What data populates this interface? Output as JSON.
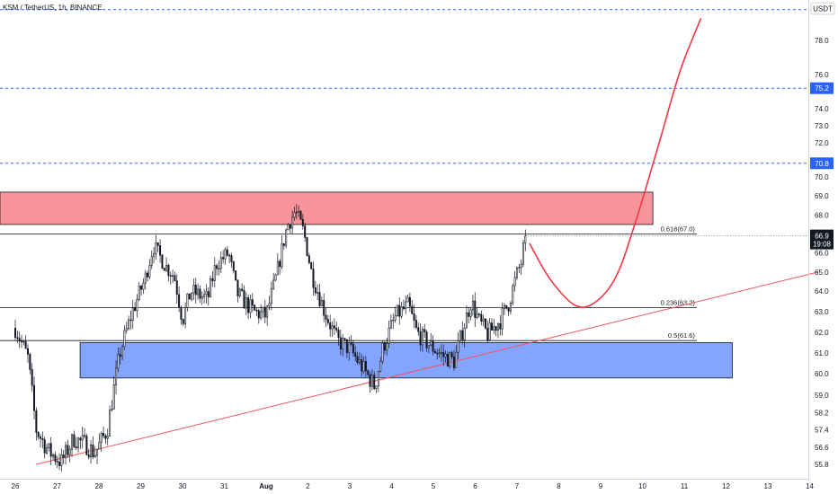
{
  "header": {
    "title": "KSM / TetherUS, 1h, BINANCE",
    "currency": "USDT"
  },
  "chart_data": {
    "type": "candlestick",
    "title": "KSM / TetherUS, 1h, BINANCE",
    "ylabel": "USDT",
    "ylim": [
      55.5,
      79.8
    ],
    "y_ticks": [
      55.8,
      56.6,
      57.4,
      58.2,
      59.0,
      60.0,
      61.0,
      62.0,
      63.0,
      64.0,
      65.0,
      66.0,
      68.0,
      69.0,
      70.0,
      72.0,
      73.0,
      74.0,
      76.0,
      78.0
    ],
    "x_ticks": [
      "26",
      "27",
      "28",
      "29",
      "30",
      "31",
      "Aug",
      "2",
      "3",
      "4",
      "5",
      "6",
      "7",
      "8",
      "9",
      "10",
      "11",
      "12",
      "13",
      "14"
    ],
    "xlim": [
      0,
      19.5
    ],
    "last_price": {
      "value": 66.9,
      "label": "66.9",
      "countdown": "19:08",
      "color": "#131722"
    },
    "horizontal_levels": [
      {
        "value": 79.8,
        "style": "dashed",
        "color": "#2962ff"
      },
      {
        "value": 75.2,
        "label": "75.2",
        "style": "dashed",
        "color": "#2962ff"
      },
      {
        "value": 70.8,
        "label": "70.8",
        "style": "dashed",
        "color": "#2962ff"
      }
    ],
    "fib_levels": [
      {
        "label": "0.618(67.0)",
        "value": 67.0,
        "x_start": 0,
        "x_end": 16.3
      },
      {
        "label": "0.236(63.2)",
        "value": 63.2,
        "x_start": 0,
        "x_end": 16.3
      },
      {
        "label": "0.5(61.6)",
        "value": 61.6,
        "x_start": 0,
        "x_end": 16.3
      }
    ],
    "zones": [
      {
        "name": "resistance",
        "x_start": 0,
        "x_end": 15.25,
        "y_low": 67.5,
        "y_high": 69.2,
        "color": "#f7525f"
      },
      {
        "name": "support",
        "x_start": 1.55,
        "x_end": 17.15,
        "y_low": 59.8,
        "y_high": 61.5,
        "color": "#2962ff"
      }
    ],
    "trendline": {
      "x": [
        0.5,
        19.2
      ],
      "y": [
        55.8,
        65.0
      ],
      "color": "#f7525f"
    },
    "projection": {
      "color": "#f23645",
      "x": [
        12.3,
        12.8,
        13.4,
        13.9,
        14.4,
        14.9,
        15.4,
        15.9,
        16.4
      ],
      "y": [
        66.5,
        64.6,
        63.3,
        63.5,
        64.9,
        68.1,
        72.0,
        76.2,
        79.3
      ]
    },
    "candles": {
      "x_start": 0,
      "x_end": 12.2,
      "count": 244,
      "anchors": [
        [
          0.0,
          62.2
        ],
        [
          0.3,
          60.8
        ],
        [
          0.5,
          57.4
        ],
        [
          0.8,
          56.4
        ],
        [
          1.1,
          55.9
        ],
        [
          1.4,
          57.0
        ],
        [
          1.7,
          56.7
        ],
        [
          1.9,
          56.3
        ],
        [
          2.2,
          57.4
        ],
        [
          2.5,
          61.0
        ],
        [
          2.8,
          63.0
        ],
        [
          3.1,
          64.6
        ],
        [
          3.3,
          66.4
        ],
        [
          3.6,
          65.3
        ],
        [
          3.8,
          64.8
        ],
        [
          4.0,
          62.6
        ],
        [
          4.2,
          64.0
        ],
        [
          4.6,
          63.6
        ],
        [
          4.8,
          65.4
        ],
        [
          5.1,
          66.0
        ],
        [
          5.3,
          63.9
        ],
        [
          5.7,
          63.0
        ],
        [
          6.0,
          62.8
        ],
        [
          6.2,
          64.4
        ],
        [
          6.5,
          67.4
        ],
        [
          6.7,
          68.2
        ],
        [
          6.9,
          67.1
        ],
        [
          7.1,
          64.8
        ],
        [
          7.4,
          63.0
        ],
        [
          7.7,
          61.6
        ],
        [
          8.0,
          61.2
        ],
        [
          8.3,
          60.3
        ],
        [
          8.6,
          59.4
        ],
        [
          8.8,
          61.3
        ],
        [
          9.1,
          62.8
        ],
        [
          9.4,
          63.3
        ],
        [
          9.6,
          62.0
        ],
        [
          9.9,
          61.4
        ],
        [
          10.2,
          60.9
        ],
        [
          10.5,
          60.6
        ],
        [
          10.7,
          62.1
        ],
        [
          10.9,
          63.5
        ],
        [
          11.1,
          62.5
        ],
        [
          11.3,
          61.9
        ],
        [
          11.6,
          62.6
        ],
        [
          11.8,
          63.4
        ],
        [
          12.0,
          64.9
        ],
        [
          12.1,
          65.5
        ],
        [
          12.2,
          66.9
        ]
      ]
    }
  }
}
